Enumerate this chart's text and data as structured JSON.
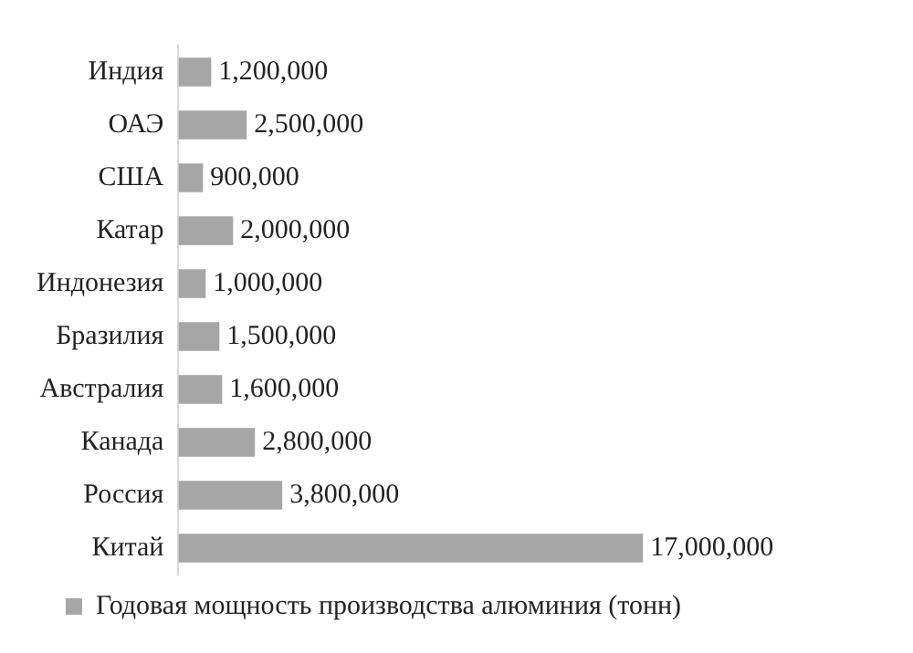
{
  "chart_data": {
    "type": "bar",
    "orientation": "horizontal",
    "categories": [
      "Индия",
      "ОАЭ",
      "США",
      "Катар",
      "Индонезия",
      "Бразилия",
      "Австралия",
      "Канада",
      "Россия",
      "Китай"
    ],
    "series": [
      {
        "name": "Годовая мощность производства алюминия (тонн)",
        "color": "#a6a6a6",
        "value_labels": [
          "1,200,000",
          "2,500,000",
          "900,000",
          "2,000,000",
          "1,000,000",
          "1,500,000",
          "1,600,000",
          "2,800,000",
          "3,800,000",
          "17,000,000"
        ],
        "values": [
          1200000,
          2500000,
          900000,
          2000000,
          1000000,
          1500000,
          1600000,
          2800000,
          3800000,
          17000000
        ]
      }
    ],
    "legend": "bottom",
    "grid": false,
    "tick_labels": "y"
  }
}
